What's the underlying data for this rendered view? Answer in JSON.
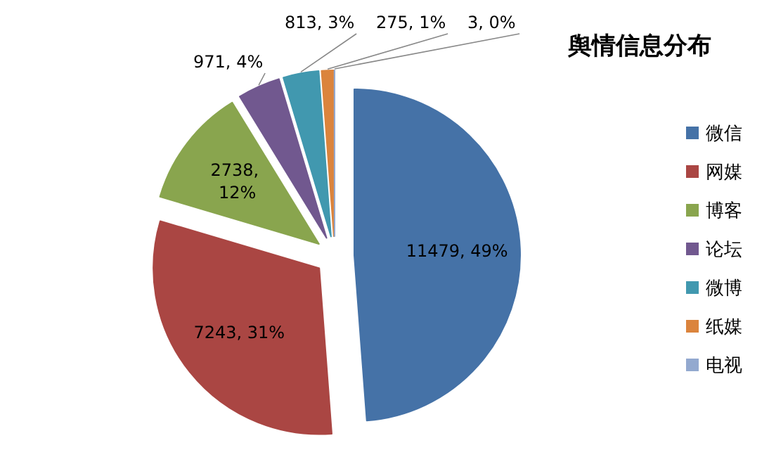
{
  "chart_data": {
    "type": "pie",
    "title": "舆情信息分布",
    "categories": [
      "微信",
      "网媒",
      "博客",
      "论坛",
      "微博",
      "纸媒",
      "电视"
    ],
    "values": [
      11479,
      7243,
      2738,
      971,
      813,
      275,
      3
    ],
    "value_labels": [
      "11479, 49%",
      "7243, 31%",
      "2738, 12%",
      "971, 4%",
      "813, 3%",
      "275, 1%",
      "3, 0%"
    ],
    "colors": [
      "#4572a7",
      "#aa4643",
      "#89a54e",
      "#71588f",
      "#4198af",
      "#db843d",
      "#93a9cf"
    ],
    "legend": "right"
  }
}
